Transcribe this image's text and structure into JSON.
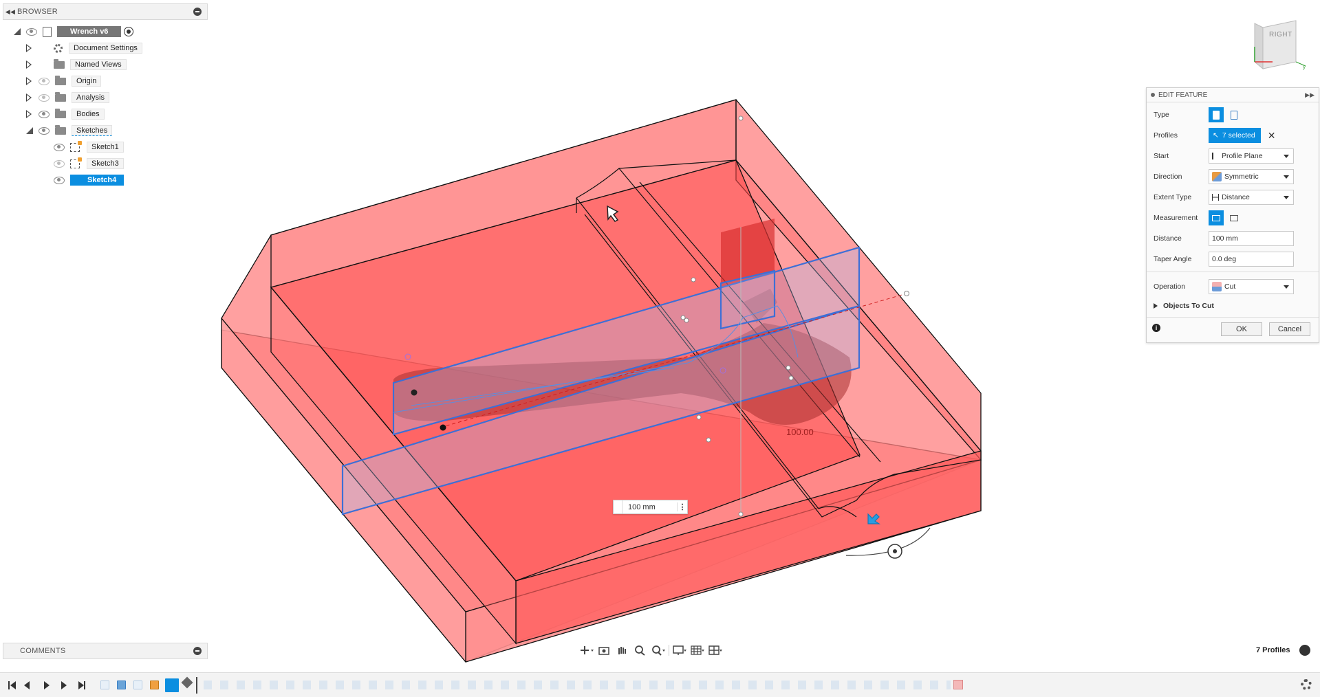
{
  "browser": {
    "title": "BROWSER",
    "root": "Wrench v6",
    "items": [
      {
        "label": "Document Settings"
      },
      {
        "label": "Named Views"
      },
      {
        "label": "Origin"
      },
      {
        "label": "Analysis"
      },
      {
        "label": "Bodies"
      },
      {
        "label": "Sketches"
      }
    ],
    "sketches": [
      {
        "label": "Sketch1"
      },
      {
        "label": "Sketch3"
      },
      {
        "label": "Sketch4"
      }
    ]
  },
  "comments": {
    "title": "COMMENTS"
  },
  "viewcube": {
    "face_label": "RIGHT"
  },
  "viewport": {
    "dimension_input": "100 mm",
    "dimension_label": "100.00"
  },
  "edit_feature": {
    "title": "EDIT FEATURE",
    "rows": {
      "type": "Type",
      "profiles": "Profiles",
      "profiles_value": "7 selected",
      "start": "Start",
      "start_value": "Profile Plane",
      "direction": "Direction",
      "direction_value": "Symmetric",
      "extent_type": "Extent Type",
      "extent_value": "Distance",
      "measurement": "Measurement",
      "distance": "Distance",
      "distance_value": "100 mm",
      "taper_angle": "Taper Angle",
      "taper_value": "0.0 deg",
      "operation": "Operation",
      "operation_value": "Cut",
      "objects_to_cut": "Objects To Cut"
    },
    "ok": "OK",
    "cancel": "Cancel"
  },
  "status": {
    "profiles_count": "7 Profiles"
  },
  "colors": {
    "accent": "#0b8ee0",
    "body_fill": "#ff3b3b",
    "profile_stroke": "#3d6fd6"
  }
}
